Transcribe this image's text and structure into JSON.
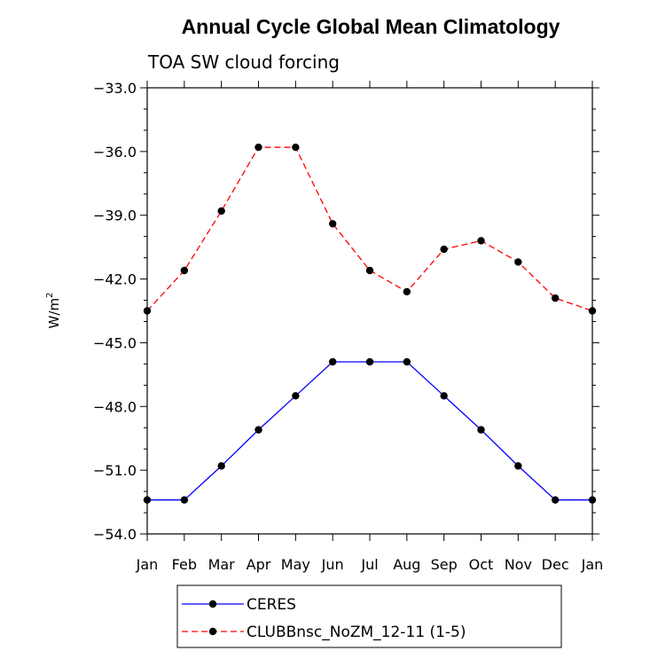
{
  "chart_data": {
    "type": "line",
    "title": "Annual Cycle Global Mean Climatology",
    "subtitle": "TOA SW cloud forcing",
    "ylabel": "W/m",
    "ylabel_sup": "2",
    "ylim": [
      -54.0,
      -33.0
    ],
    "yticks": [
      -33.0,
      -36.0,
      -39.0,
      -42.0,
      -45.0,
      -48.0,
      -51.0,
      -54.0
    ],
    "ytick_labels": [
      "−33.0",
      "−36.0",
      "−39.0",
      "−42.0",
      "−45.0",
      "−48.0",
      "−51.0",
      "−54.0"
    ],
    "categories": [
      "Jan",
      "Feb",
      "Mar",
      "Apr",
      "May",
      "Jun",
      "Jul",
      "Aug",
      "Sep",
      "Oct",
      "Nov",
      "Dec",
      "Jan"
    ],
    "grid": false,
    "legend_position": "bottom",
    "series": [
      {
        "name": "CERES",
        "color": "#0000ff",
        "dash": "solid",
        "values": [
          -52.4,
          -52.4,
          -50.8,
          -49.1,
          -47.5,
          -45.9,
          -45.9,
          -45.9,
          -47.5,
          -49.1,
          -50.8,
          -52.4,
          -52.4
        ]
      },
      {
        "name": "CLUBBnsc_NoZM_12-11 (1-5)",
        "color": "#ff0000",
        "dash": "dashed",
        "values": [
          -43.5,
          -41.6,
          -38.8,
          -35.8,
          -35.8,
          -39.4,
          -41.6,
          -42.6,
          -40.6,
          -40.2,
          -41.2,
          -42.9,
          -43.5
        ]
      }
    ]
  }
}
